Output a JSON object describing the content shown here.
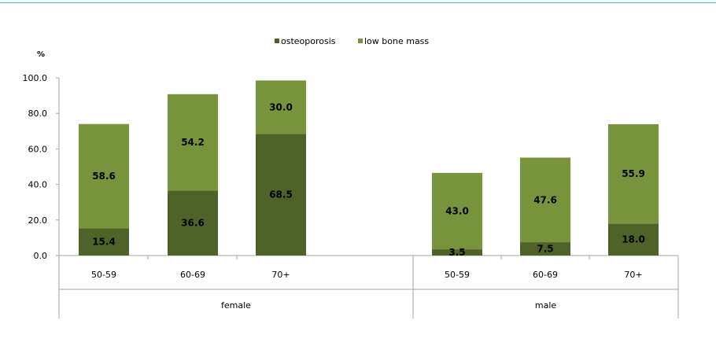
{
  "colors": {
    "osteoporosis": "#4f6228",
    "low_bone_mass": "#77933c",
    "axis": "#a6a6a6",
    "text": "#000000",
    "top_rule": "#4db6c6"
  },
  "chart_data": {
    "type": "bar",
    "stacked": true,
    "y_unit_label": "%",
    "ylim": [
      0,
      100
    ],
    "yticks": [
      "0.0",
      "20.0",
      "40.0",
      "60.0",
      "80.0",
      "100.0"
    ],
    "ytick_values": [
      0,
      20,
      40,
      60,
      80,
      100
    ],
    "grid": false,
    "legend_position": "top-center",
    "groups": [
      {
        "label": "female",
        "categories": [
          "50-59",
          "60-69",
          "70+"
        ]
      },
      {
        "label": "male",
        "categories": [
          "50-59",
          "60-69",
          "70+"
        ]
      }
    ],
    "series": [
      {
        "name": "osteoporosis",
        "values": [
          15.4,
          36.6,
          68.5,
          3.5,
          7.5,
          18.0
        ],
        "labels": [
          "15.4",
          "36.6",
          "68.5",
          "3.5",
          "7.5",
          "18.0"
        ]
      },
      {
        "name": "low bone mass",
        "values": [
          58.6,
          54.2,
          30.0,
          43.0,
          47.6,
          55.9
        ],
        "labels": [
          "58.6",
          "54.2",
          "30.0",
          "43.0",
          "47.6",
          "55.9"
        ]
      }
    ]
  }
}
